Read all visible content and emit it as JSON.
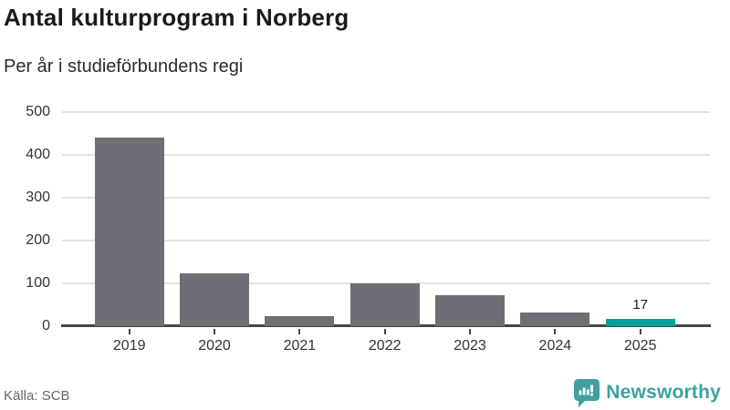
{
  "header": {
    "title": "Antal kulturprogram i Norberg",
    "subtitle": "Per år i studieförbundens regi"
  },
  "chart_data": {
    "type": "bar",
    "title": "Antal kulturprogram i Norberg",
    "subtitle": "Per år i studieförbundens regi",
    "categories": [
      "2019",
      "2020",
      "2021",
      "2022",
      "2023",
      "2024",
      "2025"
    ],
    "values": [
      440,
      123,
      23,
      100,
      72,
      33,
      17
    ],
    "bar_labels": [
      "",
      "",
      "",
      "",
      "",
      "",
      "17"
    ],
    "xlabel": "",
    "ylabel": "",
    "ylim": [
      0,
      500
    ],
    "yticks": [
      0,
      100,
      200,
      300,
      400,
      500
    ],
    "grid": "horizontal",
    "legend": "none",
    "bar_color": "#6e6e76",
    "highlight_color": "#00a29c",
    "highlight_index": 6,
    "axis_color": "#45454b",
    "gridline_color": "#e3e3e3"
  },
  "footer": {
    "source": "Källa: SCB",
    "logo_text": "Newsworthy",
    "logo_color": "#3fa19e"
  }
}
